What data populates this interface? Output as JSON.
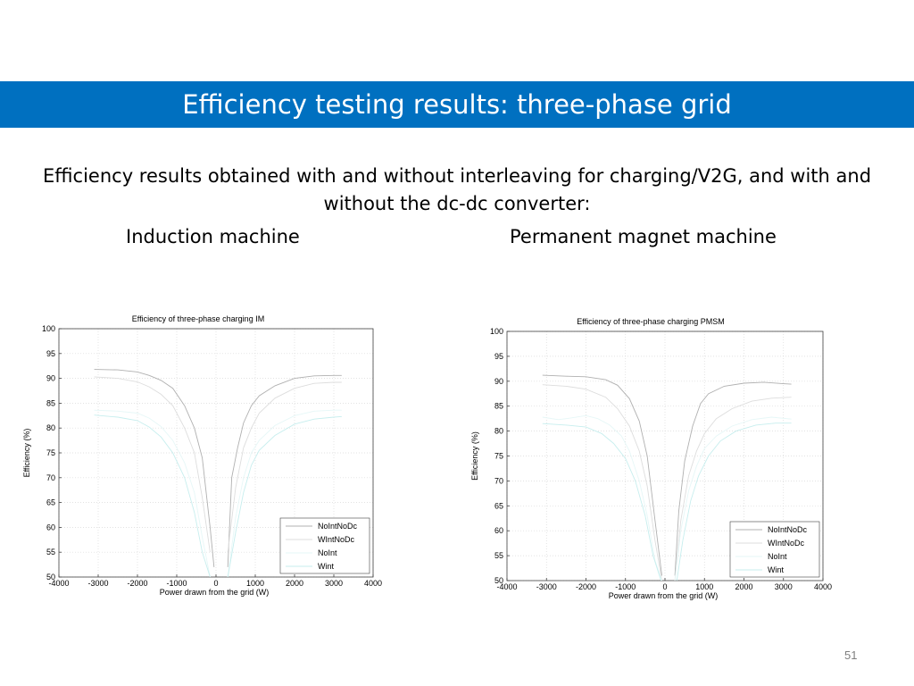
{
  "slide": {
    "title": "Efficiency testing results: three-phase grid",
    "subtitle": "Efficiency results obtained with and without interleaving for charging/V2G, and with and without the dc-dc converter:",
    "left_label": "Induction machine",
    "right_label": "Permanent magnet machine",
    "page_number": "51"
  },
  "colors": {
    "title_bar": "#0070c0",
    "series": [
      "#b0b0b0",
      "#dddddd",
      "#e6f7f7",
      "#c7eeee"
    ]
  },
  "chart_data": [
    {
      "type": "line",
      "title": "Efficiency of three-phase charging IM",
      "xlabel": "Power drawn from the grid (W)",
      "ylabel": "Efficiency (%)",
      "xlim": [
        -4000,
        4000
      ],
      "ylim": [
        50,
        100
      ],
      "xticks": [
        "-4000",
        "-3000",
        "-2000",
        "-1000",
        "0",
        "1000",
        "2000",
        "3000",
        "4000"
      ],
      "yticks": [
        "50",
        "55",
        "60",
        "65",
        "70",
        "75",
        "80",
        "85",
        "90",
        "95",
        "100"
      ],
      "grid": true,
      "legend_position": "bottom-right",
      "series": [
        {
          "name": "NoIntNoDc",
          "x": [
            -3100,
            -2500,
            -2000,
            -1700,
            -1400,
            -1100,
            -800,
            -550,
            -350,
            -150,
            -50,
            300,
            400,
            550,
            700,
            900,
            1100,
            1500,
            2000,
            2500,
            3000,
            3200
          ],
          "y": [
            91.8,
            91.7,
            91.3,
            90.6,
            89.6,
            88,
            84.5,
            80,
            74,
            60,
            52,
            52,
            70,
            76,
            81,
            84.5,
            86.5,
            88.5,
            90,
            90.5,
            90.6,
            90.6
          ]
        },
        {
          "name": "WIntNoDc",
          "x": [
            -3100,
            -2500,
            -2000,
            -1700,
            -1400,
            -1100,
            -800,
            -550,
            -350,
            -150,
            300,
            500,
            700,
            900,
            1100,
            1500,
            2000,
            2500,
            3000,
            3200
          ],
          "y": [
            90.3,
            90,
            89.3,
            88.3,
            86.8,
            84.5,
            80,
            75,
            66,
            55,
            55,
            68,
            76,
            80,
            83,
            86,
            88,
            89,
            89.2,
            89.2
          ]
        },
        {
          "name": "NoInt",
          "x": [
            -3100,
            -2500,
            -2000,
            -1700,
            -1400,
            -1100,
            -800,
            -550,
            -350,
            -150,
            300,
            500,
            700,
            900,
            1100,
            1500,
            2000,
            2500,
            3000,
            3200
          ],
          "y": [
            83.6,
            83.4,
            83,
            82,
            80.3,
            77.5,
            73,
            67,
            58,
            50,
            50,
            62,
            70,
            75,
            77.5,
            80.5,
            82.5,
            83.4,
            83.6,
            83.6
          ]
        },
        {
          "name": "Wint",
          "x": [
            -3100,
            -2500,
            -2000,
            -1700,
            -1400,
            -1100,
            -800,
            -550,
            -350,
            -150,
            300,
            500,
            700,
            900,
            1100,
            1500,
            2000,
            2500,
            3000,
            3200
          ],
          "y": [
            82.6,
            82.2,
            81.5,
            80.2,
            78.2,
            75,
            70,
            63,
            55,
            50,
            50,
            59,
            67,
            72.5,
            75.5,
            78.5,
            80.8,
            81.8,
            82.2,
            82.3
          ]
        }
      ]
    },
    {
      "type": "line",
      "title": "Efficiency of three-phase charging PMSM",
      "xlabel": "Power drawn from the grid (W)",
      "ylabel": "Efficiency (%)",
      "xlim": [
        -4000,
        4000
      ],
      "ylim": [
        50,
        100
      ],
      "xticks": [
        "-4000",
        "-3000",
        "-2000",
        "-1000",
        "0",
        "1000",
        "2000",
        "3000",
        "4000"
      ],
      "yticks": [
        "50",
        "55",
        "60",
        "65",
        "70",
        "75",
        "80",
        "85",
        "90",
        "95",
        "100"
      ],
      "grid": true,
      "legend_position": "bottom-right",
      "series": [
        {
          "name": "NoIntNoDc",
          "x": [
            -3100,
            -2500,
            -2000,
            -1500,
            -1200,
            -900,
            -650,
            -450,
            -250,
            -80,
            250,
            350,
            500,
            700,
            900,
            1100,
            1500,
            2000,
            2500,
            3000,
            3200
          ],
          "y": [
            91.2,
            91,
            90.9,
            90.3,
            89.2,
            86.5,
            82,
            75,
            62,
            51,
            51,
            64,
            74,
            81,
            85.5,
            87.5,
            89,
            89.6,
            89.8,
            89.5,
            89.4
          ]
        },
        {
          "name": "WIntNoDc",
          "x": [
            -3100,
            -2500,
            -2000,
            -1500,
            -1200,
            -900,
            -650,
            -450,
            -250,
            -80,
            250,
            400,
            600,
            800,
            1000,
            1300,
            1700,
            2200,
            2700,
            3200
          ],
          "y": [
            89.3,
            89,
            88.4,
            86.8,
            84.5,
            81,
            76,
            69,
            58,
            50,
            50,
            62,
            71,
            76,
            79.5,
            82.5,
            84.5,
            86,
            86.6,
            86.8
          ]
        },
        {
          "name": "NoInt",
          "x": [
            -3100,
            -2700,
            -2400,
            -2000,
            -1700,
            -1400,
            -1100,
            -900,
            -650,
            -450,
            -250,
            -80,
            250,
            400,
            600,
            800,
            1000,
            1300,
            1700,
            2200,
            2700,
            3200
          ],
          "y": [
            82.8,
            82.3,
            82.6,
            83.1,
            82.5,
            81.2,
            79,
            76,
            70,
            63,
            54,
            50,
            50,
            60,
            68,
            73,
            76.5,
            79,
            81,
            82.3,
            82.8,
            82.4
          ]
        },
        {
          "name": "Wint",
          "x": [
            -3100,
            -2500,
            -2000,
            -1600,
            -1300,
            -1000,
            -750,
            -500,
            -300,
            -100,
            300,
            450,
            650,
            850,
            1100,
            1400,
            1800,
            2300,
            2800,
            3200
          ],
          "y": [
            81.5,
            81.2,
            80.8,
            79.5,
            77.5,
            74.5,
            70,
            63,
            55,
            50,
            50,
            58,
            66,
            71,
            75,
            78,
            80,
            81.2,
            81.6,
            81.6
          ]
        }
      ]
    }
  ]
}
